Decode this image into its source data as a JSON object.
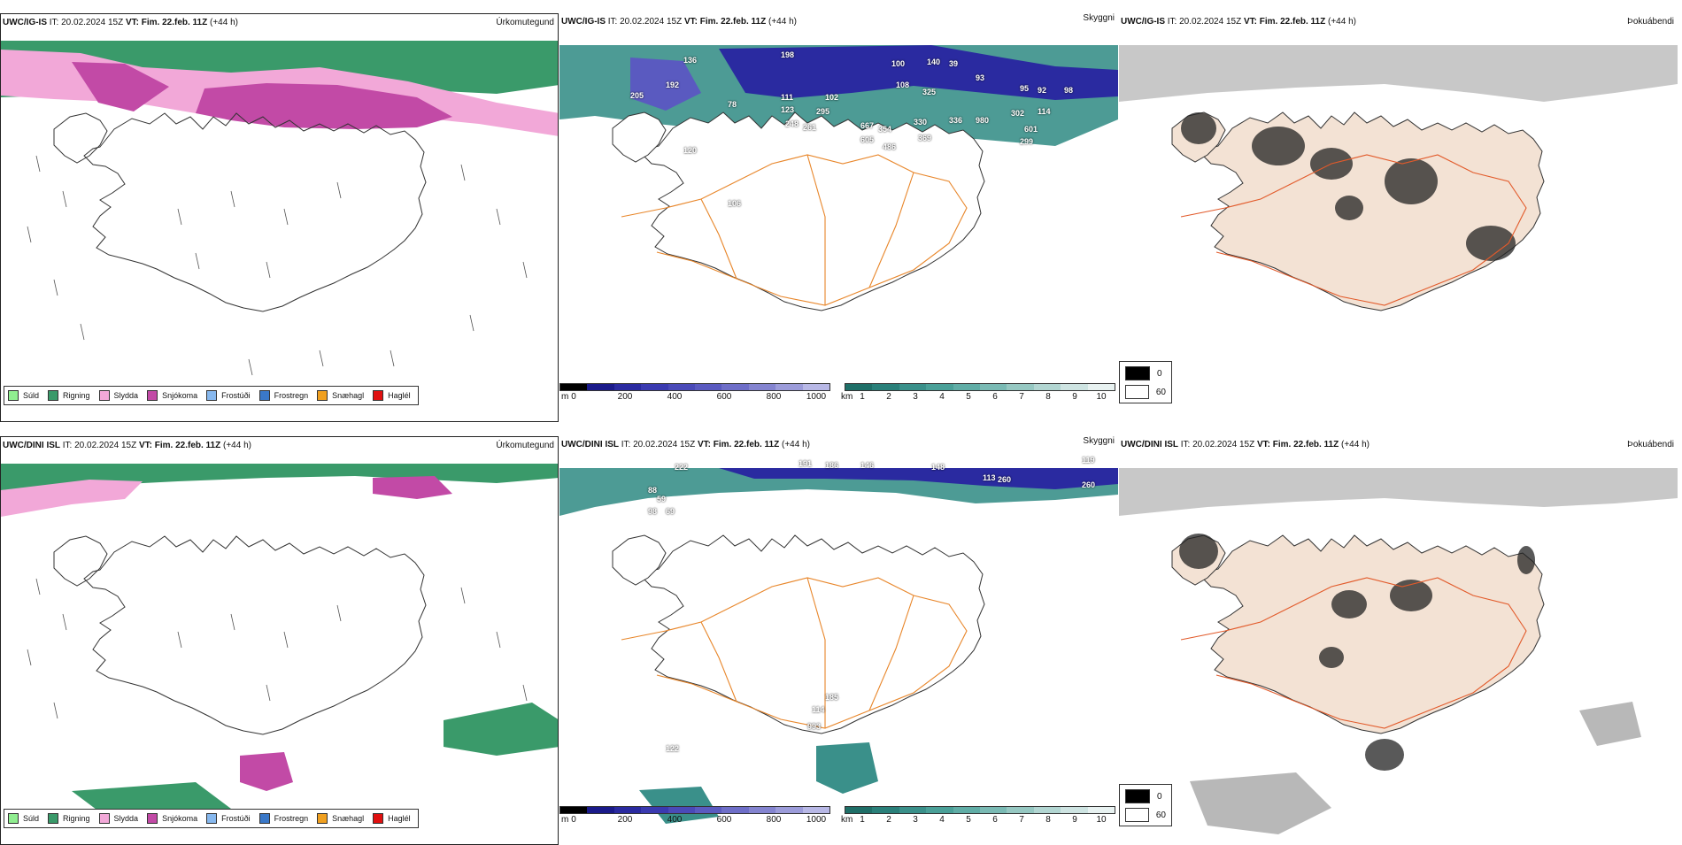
{
  "panels": [
    {
      "model": "UWC/IG-IS",
      "it_label": "IT:",
      "it": "20.02.2024 15Z",
      "vt_label": "VT:",
      "vt": "Fim. 22.feb. 11Z",
      "lead": "(+44 h)",
      "product": "Úrkomutegund"
    },
    {
      "model": "UWC/IG-IS",
      "it_label": "IT:",
      "it": "20.02.2024 15Z",
      "vt_label": "VT:",
      "vt": "Fim. 22.feb. 11Z",
      "lead": "(+44 h)",
      "product": "Skyggni"
    },
    {
      "model": "UWC/IG-IS",
      "it_label": "IT:",
      "it": "20.02.2024 15Z",
      "vt_label": "VT:",
      "vt": "Fim. 22.feb. 11Z",
      "lead": "(+44 h)",
      "product": "Þokuábendi"
    },
    {
      "model": "UWC/DINI ISL",
      "it_label": "IT:",
      "it": "20.02.2024 15Z",
      "vt_label": "VT:",
      "vt": "Fim. 22.feb. 11Z",
      "lead": "(+44 h)",
      "product": "Úrkomutegund"
    },
    {
      "model": "UWC/DINI ISL",
      "it_label": "IT:",
      "it": "20.02.2024 15Z",
      "vt_label": "VT:",
      "vt": "Fim. 22.feb. 11Z",
      "lead": "(+44 h)",
      "product": "Skyggni"
    },
    {
      "model": "UWC/DINI ISL",
      "it_label": "IT:",
      "it": "20.02.2024 15Z",
      "vt_label": "VT:",
      "vt": "Fim. 22.feb. 11Z",
      "lead": "(+44 h)",
      "product": "Þokuábendi"
    }
  ],
  "precip_legend": [
    {
      "label": "Súld",
      "color": "#90ee90"
    },
    {
      "label": "Rigning",
      "color": "#3a9a6a"
    },
    {
      "label": "Slydda",
      "color": "#f2a8d8"
    },
    {
      "label": "Snjókoma",
      "color": "#c24aa6"
    },
    {
      "label": "Frostúði",
      "color": "#87b8ee"
    },
    {
      "label": "Frostregn",
      "color": "#3a78c8"
    },
    {
      "label": "Snæhagl",
      "color": "#f0a020"
    },
    {
      "label": "Haglél",
      "color": "#e01010"
    }
  ],
  "ceiling_bar": {
    "unit": "m",
    "ticks": [
      "0",
      "200",
      "400",
      "600",
      "800",
      "1000"
    ],
    "colors": [
      "#000000",
      "#1a1a8a",
      "#2a2aa0",
      "#3a3ab0",
      "#4a4ab8",
      "#5a5ac0",
      "#6e6ec8",
      "#8484d0",
      "#9c9cda",
      "#b8b8e6"
    ]
  },
  "visibility_bar": {
    "unit": "km",
    "ticks": [
      "1",
      "2",
      "3",
      "4",
      "5",
      "6",
      "7",
      "8",
      "9",
      "10"
    ],
    "colors": [
      "#1f6f68",
      "#2a807a",
      "#3a908a",
      "#4aa098",
      "#60ada6",
      "#7abab4",
      "#96c8c2",
      "#b2d6d2",
      "#cee4e2",
      "#e8f2f1"
    ]
  },
  "fog_legend": [
    {
      "label": "0",
      "color": "#000000"
    },
    {
      "label": "60",
      "color": "#ffffff"
    }
  ],
  "ceiling_labels_top": [
    "136",
    "198",
    "100",
    "140",
    "39",
    "93",
    "95",
    "92",
    "98",
    "192",
    "205",
    "78",
    "111",
    "123",
    "102",
    "108",
    "325",
    "248",
    "261",
    "295",
    "667",
    "354",
    "330",
    "336",
    "980",
    "302",
    "114",
    "605",
    "486",
    "369",
    "601",
    "299",
    "120",
    "106"
  ],
  "ceiling_labels_bottom": [
    "222",
    "191",
    "186",
    "146",
    "148",
    "113",
    "260",
    "260",
    "119",
    "88",
    "59",
    "98",
    "69",
    "185",
    "114",
    "993",
    "122"
  ]
}
